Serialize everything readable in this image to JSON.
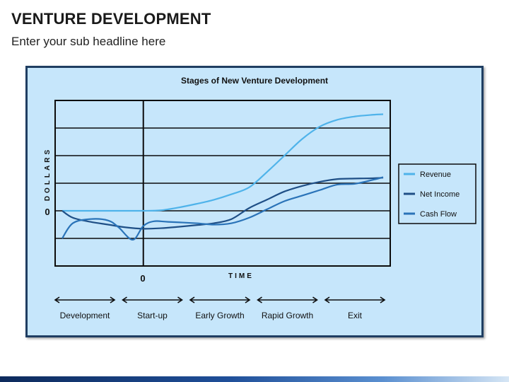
{
  "slide": {
    "title": "VENTURE DEVELOPMENT",
    "subtitle": "Enter your sub headline here"
  },
  "chart_data": {
    "type": "line",
    "title": "Stages of New Venture Development",
    "xlabel": "TIME",
    "ylabel": "DOLLARS",
    "x_origin_label": "0",
    "y_zero_label": "0",
    "xlim": [
      -2.5,
      7
    ],
    "ylim": [
      -2,
      4
    ],
    "grid": true,
    "legend_position": "right",
    "series": [
      {
        "name": "Revenue",
        "color": "#4fb3ea",
        "x": [
          -2.3,
          -1,
          0,
          0.5,
          1,
          1.5,
          2,
          2.5,
          3,
          3.5,
          4,
          4.5,
          5,
          5.5,
          6,
          6.5,
          6.8
        ],
        "y": [
          0,
          0,
          0,
          0.02,
          0.12,
          0.25,
          0.4,
          0.6,
          0.85,
          1.4,
          2.0,
          2.6,
          3.05,
          3.3,
          3.42,
          3.48,
          3.5
        ]
      },
      {
        "name": "Net Income",
        "color": "#1f4f86",
        "x": [
          -2.3,
          -2,
          -1.5,
          -1,
          -0.5,
          0,
          0.5,
          1,
          1.5,
          2,
          2.5,
          3,
          3.5,
          4,
          4.5,
          5,
          5.5,
          6,
          6.5,
          6.8
        ],
        "y": [
          0,
          -0.25,
          -0.4,
          -0.5,
          -0.6,
          -0.65,
          -0.63,
          -0.58,
          -0.52,
          -0.45,
          -0.3,
          0.1,
          0.4,
          0.7,
          0.9,
          1.05,
          1.15,
          1.17,
          1.18,
          1.2
        ]
      },
      {
        "name": "Cash Flow",
        "color": "#2a73b8",
        "x": [
          -2.3,
          -2,
          -1.5,
          -1,
          -0.7,
          -0.3,
          0,
          0.3,
          0.7,
          1.5,
          2,
          2.5,
          3,
          3.5,
          4,
          4.5,
          5,
          5.5,
          6,
          6.5,
          6.8
        ],
        "y": [
          -1,
          -0.45,
          -0.3,
          -0.35,
          -0.6,
          -1.05,
          -0.55,
          -0.38,
          -0.4,
          -0.45,
          -0.5,
          -0.45,
          -0.25,
          0.05,
          0.35,
          0.55,
          0.75,
          0.95,
          0.98,
          1.12,
          1.22
        ]
      }
    ],
    "stages": [
      "Development",
      "Start-up",
      "Early Growth",
      "Rapid Growth",
      "Exit"
    ]
  }
}
